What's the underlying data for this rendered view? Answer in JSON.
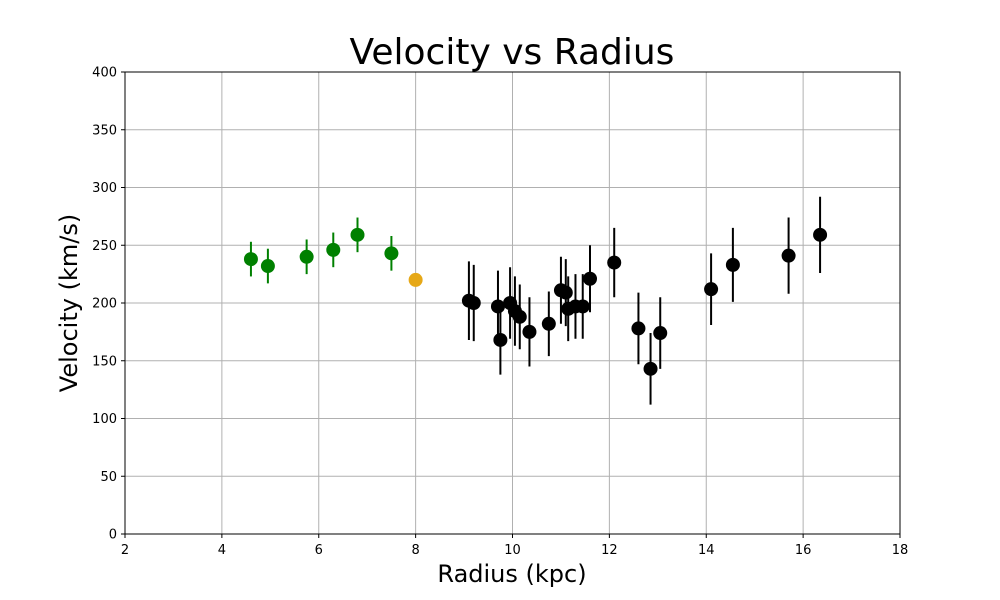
{
  "chart_data": {
    "type": "scatter",
    "title": "Velocity vs Radius",
    "xlabel": "Radius (kpc)",
    "ylabel": "Velocity (km/s)",
    "xlim": [
      2,
      18
    ],
    "ylim": [
      0,
      400
    ],
    "xticks": [
      2,
      4,
      6,
      8,
      10,
      12,
      14,
      16,
      18
    ],
    "yticks": [
      0,
      50,
      100,
      150,
      200,
      250,
      300,
      350,
      400
    ],
    "grid": true,
    "error_bars": true,
    "series": [
      {
        "color": "#008000",
        "points": [
          {
            "x": 4.6,
            "y": 238,
            "err": 15
          },
          {
            "x": 4.95,
            "y": 232,
            "err": 15
          },
          {
            "x": 5.75,
            "y": 240,
            "err": 15
          },
          {
            "x": 6.3,
            "y": 246,
            "err": 15
          },
          {
            "x": 6.8,
            "y": 259,
            "err": 15
          },
          {
            "x": 7.5,
            "y": 243,
            "err": 15
          }
        ]
      },
      {
        "color": "#e6a817",
        "points": [
          {
            "x": 8.0,
            "y": 220,
            "err": 0
          }
        ]
      },
      {
        "color": "#000000",
        "points": [
          {
            "x": 9.1,
            "y": 202,
            "err": 34
          },
          {
            "x": 9.2,
            "y": 200,
            "err": 33
          },
          {
            "x": 9.7,
            "y": 197,
            "err": 31
          },
          {
            "x": 9.75,
            "y": 168,
            "err": 30
          },
          {
            "x": 9.95,
            "y": 200,
            "err": 31
          },
          {
            "x": 10.05,
            "y": 193,
            "err": 30
          },
          {
            "x": 10.15,
            "y": 188,
            "err": 28
          },
          {
            "x": 10.35,
            "y": 175,
            "err": 30
          },
          {
            "x": 10.75,
            "y": 182,
            "err": 28
          },
          {
            "x": 11.0,
            "y": 211,
            "err": 29
          },
          {
            "x": 11.1,
            "y": 209,
            "err": 29
          },
          {
            "x": 11.15,
            "y": 195,
            "err": 28
          },
          {
            "x": 11.3,
            "y": 197,
            "err": 28
          },
          {
            "x": 11.45,
            "y": 197,
            "err": 28
          },
          {
            "x": 11.6,
            "y": 221,
            "err": 29
          },
          {
            "x": 12.1,
            "y": 235,
            "err": 30
          },
          {
            "x": 12.6,
            "y": 178,
            "err": 31
          },
          {
            "x": 12.85,
            "y": 143,
            "err": 31
          },
          {
            "x": 13.05,
            "y": 174,
            "err": 31
          },
          {
            "x": 14.1,
            "y": 212,
            "err": 31
          },
          {
            "x": 14.55,
            "y": 233,
            "err": 32
          },
          {
            "x": 15.7,
            "y": 241,
            "err": 33
          },
          {
            "x": 16.35,
            "y": 259,
            "err": 33
          }
        ]
      }
    ]
  }
}
